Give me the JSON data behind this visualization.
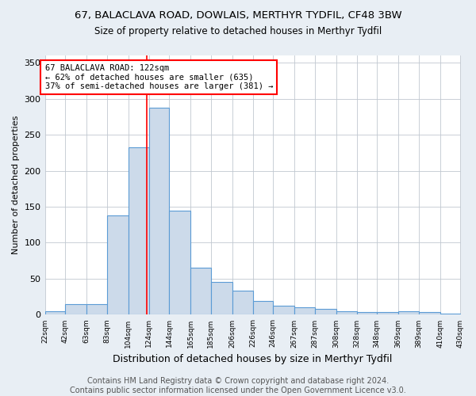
{
  "title": "67, BALACLAVA ROAD, DOWLAIS, MERTHYR TYDFIL, CF48 3BW",
  "subtitle": "Size of property relative to detached houses in Merthyr Tydfil",
  "xlabel": "Distribution of detached houses by size in Merthyr Tydfil",
  "ylabel": "Number of detached properties",
  "bar_edges": [
    22,
    42,
    63,
    83,
    104,
    124,
    144,
    165,
    185,
    206,
    226,
    246,
    267,
    287,
    308,
    328,
    348,
    369,
    389,
    410,
    430
  ],
  "bar_heights": [
    5,
    15,
    15,
    138,
    232,
    287,
    145,
    65,
    46,
    33,
    19,
    13,
    10,
    8,
    5,
    4,
    4,
    5,
    4,
    2
  ],
  "bar_color": "#ccdaea",
  "bar_edge_color": "#5b9bd5",
  "property_line_x": 122,
  "property_line_color": "red",
  "annotation_text": "67 BALACLAVA ROAD: 122sqm\n← 62% of detached houses are smaller (635)\n37% of semi-detached houses are larger (381) →",
  "annotation_box_color": "white",
  "annotation_box_edge_color": "red",
  "ylim": [
    0,
    360
  ],
  "yticks": [
    0,
    50,
    100,
    150,
    200,
    250,
    300,
    350
  ],
  "tick_labels": [
    "22sqm",
    "42sqm",
    "63sqm",
    "83sqm",
    "104sqm",
    "124sqm",
    "144sqm",
    "165sqm",
    "185sqm",
    "206sqm",
    "226sqm",
    "246sqm",
    "267sqm",
    "287sqm",
    "308sqm",
    "328sqm",
    "348sqm",
    "369sqm",
    "389sqm",
    "410sqm",
    "430sqm"
  ],
  "footer": "Contains HM Land Registry data © Crown copyright and database right 2024.\nContains public sector information licensed under the Open Government Licence v3.0.",
  "bg_color": "#e8eef4",
  "plot_bg_color": "#ffffff",
  "grid_color": "#c0c8d0",
  "title_fontsize": 9.5,
  "subtitle_fontsize": 8.5,
  "xlabel_fontsize": 9,
  "ylabel_fontsize": 8,
  "footer_fontsize": 7,
  "annotation_fontsize": 7.5,
  "tick_fontsize": 6.5
}
